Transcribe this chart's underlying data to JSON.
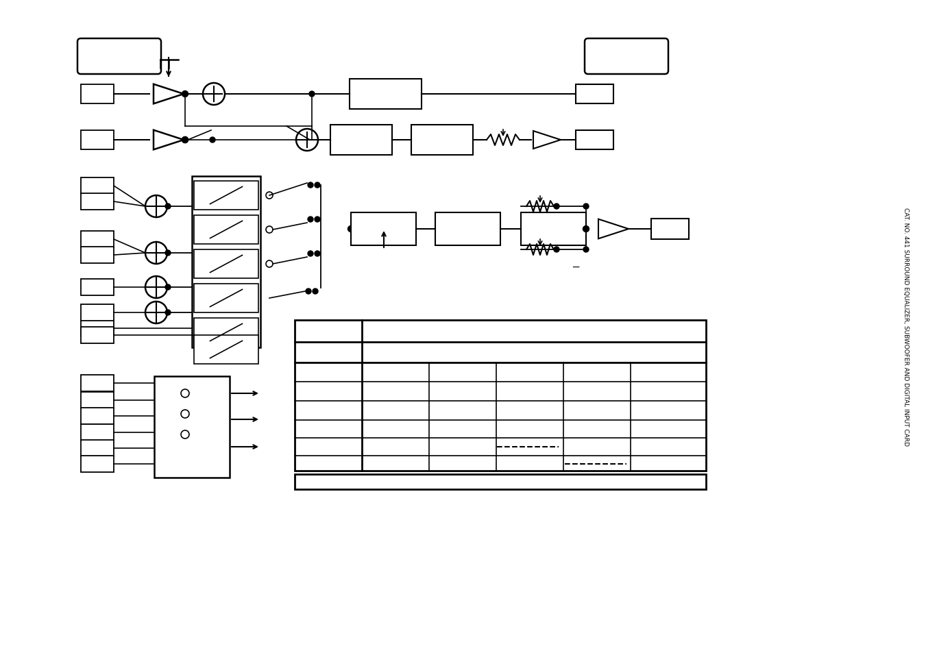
{
  "bg_color": "#ffffff",
  "lc": "#000000",
  "sidebar_text": "CAT. NO. 441 SURROUND EQUALIZER, SUBWOOFER AND DIGITAL INPUT CARD"
}
